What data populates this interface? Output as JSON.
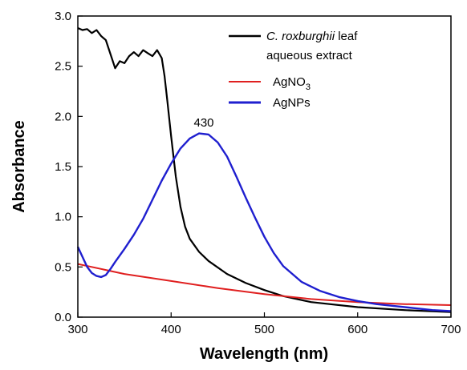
{
  "chart_data": {
    "type": "line",
    "xlabel": "Wavelength (nm)",
    "ylabel": "Absorbance",
    "xlim": [
      300,
      700
    ],
    "ylim": [
      0.0,
      3.0
    ],
    "x_ticks": [
      "300",
      "400",
      "500",
      "600",
      "700"
    ],
    "y_ticks": [
      "0.0",
      "0.5",
      "1.0",
      "1.5",
      "2.0",
      "2.5",
      "3.0"
    ],
    "grid": false,
    "legend_position": "top-right",
    "legend": {
      "extract_italic": "C. roxburghii",
      "extract_rest": " leaf",
      "extract_line2": "aqueous extract",
      "agno3_base": "AgNO",
      "agno3_sub": "3",
      "agnps": "AgNPs"
    },
    "annotations": [
      {
        "text": "430",
        "x": 430,
        "y": 1.84
      }
    ],
    "series": [
      {
        "name": "C. roxburghii leaf aqueous extract",
        "color": "#000000",
        "points": [
          [
            300,
            2.88
          ],
          [
            305,
            2.86
          ],
          [
            310,
            2.87
          ],
          [
            315,
            2.83
          ],
          [
            320,
            2.86
          ],
          [
            325,
            2.8
          ],
          [
            330,
            2.76
          ],
          [
            335,
            2.62
          ],
          [
            340,
            2.48
          ],
          [
            345,
            2.55
          ],
          [
            350,
            2.53
          ],
          [
            355,
            2.6
          ],
          [
            360,
            2.64
          ],
          [
            365,
            2.6
          ],
          [
            370,
            2.66
          ],
          [
            375,
            2.63
          ],
          [
            380,
            2.6
          ],
          [
            385,
            2.66
          ],
          [
            390,
            2.58
          ],
          [
            393,
            2.4
          ],
          [
            396,
            2.15
          ],
          [
            400,
            1.8
          ],
          [
            405,
            1.4
          ],
          [
            410,
            1.1
          ],
          [
            415,
            0.9
          ],
          [
            420,
            0.78
          ],
          [
            430,
            0.65
          ],
          [
            440,
            0.56
          ],
          [
            460,
            0.43
          ],
          [
            480,
            0.34
          ],
          [
            500,
            0.27
          ],
          [
            520,
            0.21
          ],
          [
            550,
            0.15
          ],
          [
            600,
            0.1
          ],
          [
            650,
            0.07
          ],
          [
            700,
            0.05
          ]
        ]
      },
      {
        "name": "AgNO3",
        "color": "#e02020",
        "points": [
          [
            300,
            0.53
          ],
          [
            350,
            0.43
          ],
          [
            400,
            0.36
          ],
          [
            450,
            0.29
          ],
          [
            500,
            0.23
          ],
          [
            550,
            0.18
          ],
          [
            600,
            0.15
          ],
          [
            650,
            0.13
          ],
          [
            700,
            0.12
          ]
        ]
      },
      {
        "name": "AgNPs",
        "color": "#1f1fcf",
        "points": [
          [
            300,
            0.7
          ],
          [
            305,
            0.6
          ],
          [
            310,
            0.5
          ],
          [
            315,
            0.44
          ],
          [
            320,
            0.41
          ],
          [
            325,
            0.4
          ],
          [
            330,
            0.42
          ],
          [
            335,
            0.48
          ],
          [
            340,
            0.55
          ],
          [
            350,
            0.68
          ],
          [
            360,
            0.82
          ],
          [
            370,
            0.98
          ],
          [
            380,
            1.17
          ],
          [
            390,
            1.36
          ],
          [
            400,
            1.53
          ],
          [
            410,
            1.68
          ],
          [
            420,
            1.78
          ],
          [
            430,
            1.83
          ],
          [
            440,
            1.82
          ],
          [
            450,
            1.74
          ],
          [
            460,
            1.6
          ],
          [
            470,
            1.4
          ],
          [
            480,
            1.19
          ],
          [
            490,
            0.99
          ],
          [
            500,
            0.8
          ],
          [
            510,
            0.64
          ],
          [
            520,
            0.51
          ],
          [
            540,
            0.35
          ],
          [
            560,
            0.26
          ],
          [
            580,
            0.2
          ],
          [
            600,
            0.16
          ],
          [
            620,
            0.13
          ],
          [
            640,
            0.11
          ],
          [
            660,
            0.09
          ],
          [
            680,
            0.07
          ],
          [
            700,
            0.06
          ]
        ]
      }
    ]
  }
}
